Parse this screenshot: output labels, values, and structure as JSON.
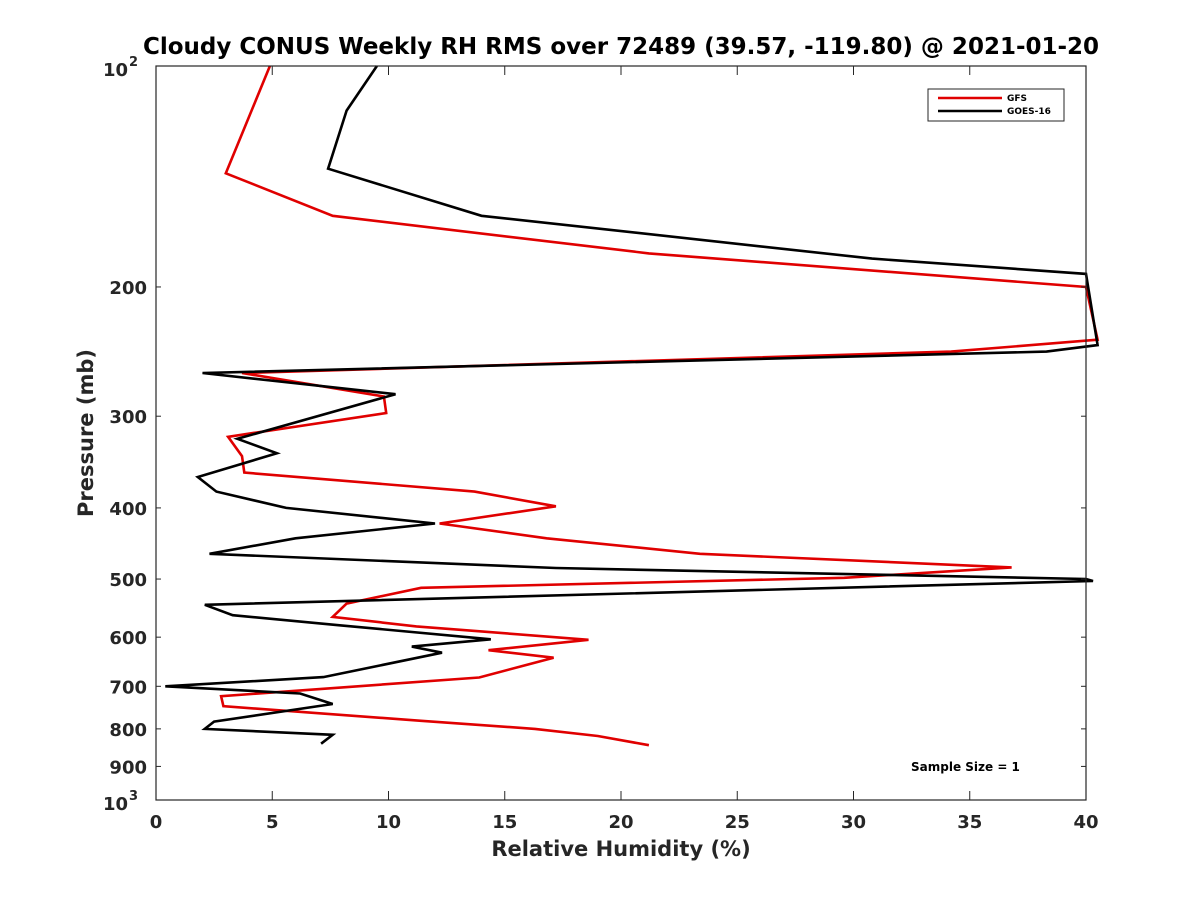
{
  "chart_data": {
    "type": "line",
    "title": "Cloudy CONUS Weekly RH RMS over 72489 (39.57, -119.80) @ 2021-01-20",
    "xlabel": "Relative Humidity (%)",
    "ylabel": "Pressure (mb)",
    "xlim": [
      0,
      40
    ],
    "ylim": [
      100,
      1000
    ],
    "y_scale": "log",
    "y_reversed": true,
    "x_ticks": [
      0,
      5,
      10,
      15,
      20,
      25,
      30,
      35,
      40
    ],
    "x_tick_labels": [
      "0",
      "5",
      "10",
      "15",
      "20",
      "25",
      "30",
      "35",
      "40"
    ],
    "y_ticks": [
      200,
      300,
      400,
      500,
      600,
      700,
      800,
      900
    ],
    "y_tick_labels": [
      "200",
      "300",
      "400",
      "500",
      "600",
      "700",
      "800",
      "900"
    ],
    "y_top_label": {
      "base": "10",
      "exp": "2"
    },
    "y_bottom_label": {
      "base": "10",
      "exp": "3"
    },
    "grid": false,
    "legend_position": "top-right",
    "annotation": "Sample Size = 1",
    "series": [
      {
        "name": "GFS",
        "color": "#e00000",
        "points": [
          [
            4.9,
            100
          ],
          [
            3.0,
            140
          ],
          [
            7.6,
            160
          ],
          [
            21.2,
            180
          ],
          [
            40.0,
            200
          ],
          [
            40.5,
            236
          ],
          [
            34.2,
            245
          ],
          [
            3.7,
            262
          ],
          [
            9.8,
            282
          ],
          [
            9.9,
            297
          ],
          [
            3.1,
            320
          ],
          [
            3.7,
            340
          ],
          [
            3.8,
            358
          ],
          [
            13.7,
            380
          ],
          [
            17.2,
            398
          ],
          [
            12.2,
            420
          ],
          [
            16.8,
            440
          ],
          [
            23.4,
            462
          ],
          [
            36.8,
            482
          ],
          [
            29.6,
            498
          ],
          [
            11.4,
            514
          ],
          [
            8.2,
            540
          ],
          [
            7.6,
            563
          ],
          [
            11.2,
            580
          ],
          [
            18.6,
            605
          ],
          [
            14.3,
            625
          ],
          [
            17.1,
            640
          ],
          [
            15.9,
            655
          ],
          [
            13.9,
            681
          ],
          [
            2.8,
            722
          ],
          [
            2.9,
            745
          ],
          [
            11.4,
            780
          ],
          [
            16.3,
            800
          ],
          [
            19.0,
            818
          ],
          [
            21.2,
            842
          ]
        ]
      },
      {
        "name": "GOES-16",
        "color": "#000000",
        "points": [
          [
            9.5,
            100
          ],
          [
            8.2,
            115
          ],
          [
            7.4,
            138
          ],
          [
            14.0,
            160
          ],
          [
            30.8,
            183
          ],
          [
            40.0,
            192
          ],
          [
            40.5,
            240
          ],
          [
            38.3,
            245
          ],
          [
            2.0,
            262
          ],
          [
            10.3,
            280
          ],
          [
            3.5,
            322
          ],
          [
            5.2,
            337
          ],
          [
            1.8,
            363
          ],
          [
            2.6,
            380
          ],
          [
            5.6,
            400
          ],
          [
            12.0,
            420
          ],
          [
            6.0,
            440
          ],
          [
            2.3,
            462
          ],
          [
            17.2,
            483
          ],
          [
            40.0,
            500
          ],
          [
            40.3,
            503
          ],
          [
            2.1,
            542
          ],
          [
            3.3,
            560
          ],
          [
            7.9,
            578
          ],
          [
            14.4,
            604
          ],
          [
            11.0,
            618
          ],
          [
            12.3,
            630
          ],
          [
            7.2,
            680
          ],
          [
            0.4,
            700
          ],
          [
            6.2,
            716
          ],
          [
            7.6,
            740
          ],
          [
            2.5,
            782
          ],
          [
            2.1,
            800
          ],
          [
            7.6,
            815
          ],
          [
            7.1,
            838
          ]
        ]
      }
    ]
  }
}
